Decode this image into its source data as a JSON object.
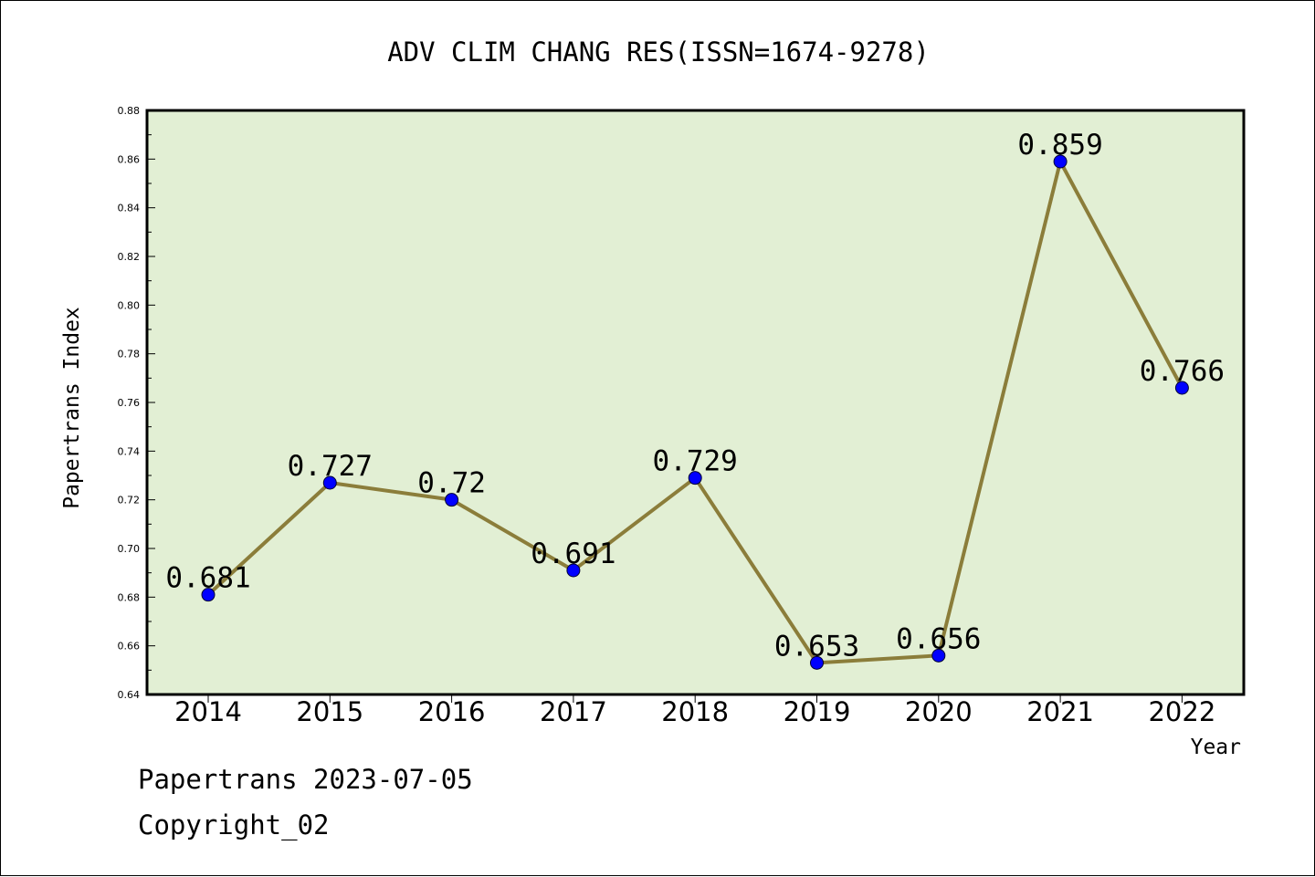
{
  "chart_data": {
    "type": "line",
    "title": "ADV CLIM CHANG RES(ISSN=1674-9278)",
    "xlabel": "Year",
    "ylabel": "Papertrans Index",
    "x": [
      "2014",
      "2015",
      "2016",
      "2017",
      "2018",
      "2019",
      "2020",
      "2021",
      "2022"
    ],
    "series": [
      {
        "values": [
          0.681,
          0.727,
          0.72,
          0.691,
          0.729,
          0.653,
          0.656,
          0.859,
          0.766
        ],
        "labels": [
          "0.681",
          "0.727",
          "0.72",
          "0.691",
          "0.729",
          "0.653",
          "0.656",
          "0.859",
          "0.766"
        ]
      }
    ],
    "ylim": [
      0.64,
      0.88
    ],
    "yticks": [
      "0.64",
      "0.66",
      "0.68",
      "0.70",
      "0.72",
      "0.74",
      "0.76",
      "0.78",
      "0.80",
      "0.82",
      "0.84",
      "0.86",
      "0.88"
    ],
    "grid": false,
    "legend": "none",
    "colors": {
      "plot_background": "#e2efd4",
      "line": "#8b7d3a",
      "marker": "#0000ff"
    }
  },
  "footer": {
    "date_line": "Papertrans 2023-07-05",
    "copyright": "Copyright_02"
  }
}
